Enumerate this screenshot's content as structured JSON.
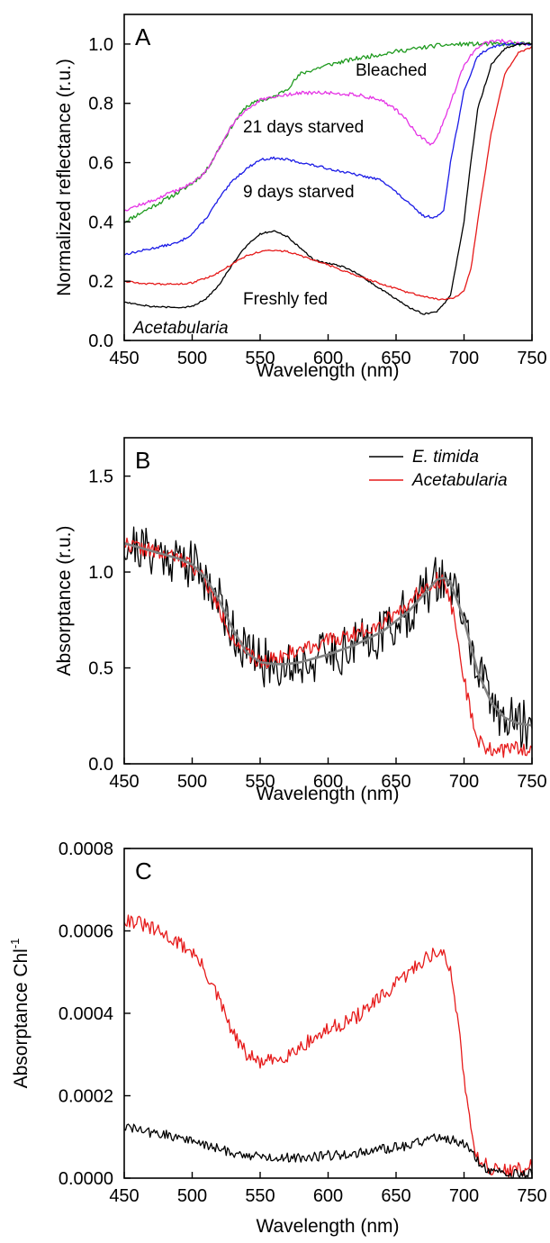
{
  "chart_data": [
    {
      "panel_label": "A",
      "type": "line",
      "xlabel": "Wavelength (nm)",
      "ylabel": "Normalized reflectance (r.u.)",
      "xlim": [
        450,
        750
      ],
      "ylim": [
        0.0,
        1.1
      ],
      "xticks": [
        "450",
        "500",
        "550",
        "600",
        "650",
        "700",
        "750"
      ],
      "yticks": [
        "0.0",
        "0.2",
        "0.4",
        "0.6",
        "0.8",
        "1.0"
      ],
      "grid": false,
      "annotations": [
        {
          "text": "Bleached",
          "color": "#1f9a1f"
        },
        {
          "text": "21 days starved",
          "color": "#e535e5"
        },
        {
          "text": "9 days starved",
          "color": "#1a1ae6"
        },
        {
          "text": "Freshly fed",
          "color": "#e61a1a"
        },
        {
          "text": "Acetabularia",
          "color": "#000000"
        }
      ],
      "series": [
        {
          "color": "#1f9a1f",
          "noise": 0.007,
          "x": [
            450,
            470,
            490,
            500,
            510,
            520,
            530,
            540,
            550,
            560,
            570,
            580,
            600,
            620,
            650,
            680,
            700,
            720,
            750
          ],
          "y": [
            0.4,
            0.45,
            0.5,
            0.53,
            0.57,
            0.65,
            0.73,
            0.79,
            0.81,
            0.82,
            0.85,
            0.9,
            0.93,
            0.95,
            0.975,
            0.995,
            1.0,
            1.0,
            1.0
          ]
        },
        {
          "color": "#e535e5",
          "noise": 0.006,
          "x": [
            450,
            470,
            490,
            500,
            510,
            520,
            530,
            540,
            550,
            560,
            570,
            580,
            600,
            620,
            640,
            655,
            665,
            675,
            680,
            690,
            700,
            710,
            720,
            730,
            740,
            750
          ],
          "y": [
            0.44,
            0.47,
            0.51,
            0.53,
            0.57,
            0.65,
            0.73,
            0.78,
            0.81,
            0.82,
            0.83,
            0.835,
            0.835,
            0.83,
            0.81,
            0.76,
            0.7,
            0.66,
            0.68,
            0.8,
            0.93,
            0.99,
            1.01,
            1.01,
            1.0,
            1.0
          ]
        },
        {
          "color": "#1a1ae6",
          "noise": 0.004,
          "x": [
            450,
            470,
            490,
            500,
            510,
            520,
            530,
            540,
            550,
            560,
            570,
            580,
            600,
            620,
            640,
            650,
            660,
            670,
            680,
            685,
            690,
            700,
            710,
            720,
            730,
            740,
            750
          ],
          "y": [
            0.29,
            0.31,
            0.33,
            0.36,
            0.41,
            0.48,
            0.54,
            0.58,
            0.61,
            0.615,
            0.61,
            0.6,
            0.58,
            0.56,
            0.54,
            0.5,
            0.46,
            0.42,
            0.415,
            0.44,
            0.6,
            0.84,
            0.96,
            0.99,
            1.0,
            1.0,
            1.0
          ]
        },
        {
          "color": "#000000",
          "noise": 0.003,
          "x": [
            450,
            470,
            490,
            500,
            510,
            520,
            530,
            540,
            550,
            560,
            570,
            580,
            590,
            600,
            610,
            620,
            630,
            640,
            650,
            660,
            670,
            680,
            690,
            700,
            705,
            710,
            720,
            730,
            740,
            750
          ],
          "y": [
            0.13,
            0.115,
            0.11,
            0.115,
            0.14,
            0.19,
            0.26,
            0.32,
            0.36,
            0.37,
            0.35,
            0.31,
            0.27,
            0.26,
            0.25,
            0.23,
            0.2,
            0.17,
            0.14,
            0.11,
            0.09,
            0.095,
            0.15,
            0.4,
            0.6,
            0.78,
            0.93,
            0.985,
            1.0,
            1.0
          ]
        },
        {
          "color": "#e61a1a",
          "noise": 0.003,
          "x": [
            450,
            470,
            490,
            500,
            510,
            520,
            530,
            540,
            550,
            560,
            570,
            580,
            590,
            600,
            620,
            640,
            660,
            680,
            690,
            695,
            700,
            705,
            710,
            720,
            730,
            740,
            750
          ],
          "y": [
            0.2,
            0.19,
            0.19,
            0.195,
            0.21,
            0.23,
            0.26,
            0.285,
            0.3,
            0.305,
            0.3,
            0.285,
            0.27,
            0.255,
            0.22,
            0.19,
            0.16,
            0.14,
            0.14,
            0.15,
            0.17,
            0.24,
            0.4,
            0.7,
            0.9,
            0.97,
            0.99
          ]
        }
      ]
    },
    {
      "panel_label": "B",
      "type": "line",
      "xlabel": "Wavelength (nm)",
      "ylabel": "Absorptance (r.u.)",
      "xlim": [
        450,
        750
      ],
      "ylim": [
        0.0,
        1.7
      ],
      "xticks": [
        "450",
        "500",
        "550",
        "600",
        "650",
        "700",
        "750"
      ],
      "yticks": [
        "0.0",
        "0.5",
        "1.0",
        "1.5"
      ],
      "grid": false,
      "legend_position": "top-right",
      "series": [
        {
          "name": "E. timida",
          "color": "#000000",
          "noise": 0.13,
          "x": [
            450,
            470,
            490,
            500,
            510,
            520,
            530,
            540,
            550,
            560,
            570,
            580,
            600,
            620,
            640,
            660,
            670,
            680,
            685,
            690,
            700,
            710,
            720,
            730,
            740,
            750
          ],
          "y": [
            1.15,
            1.11,
            1.07,
            1.04,
            0.97,
            0.85,
            0.7,
            0.58,
            0.53,
            0.52,
            0.52,
            0.53,
            0.57,
            0.62,
            0.69,
            0.8,
            0.88,
            0.96,
            0.97,
            0.95,
            0.75,
            0.48,
            0.32,
            0.24,
            0.21,
            0.2
          ]
        },
        {
          "name": "Acetabularia",
          "color": "#e61a1a",
          "noise": 0.04,
          "x": [
            450,
            470,
            490,
            500,
            510,
            520,
            530,
            540,
            550,
            560,
            570,
            580,
            600,
            620,
            640,
            660,
            670,
            680,
            685,
            690,
            695,
            700,
            705,
            710,
            720,
            730,
            740,
            750
          ],
          "y": [
            1.15,
            1.11,
            1.07,
            1.04,
            0.95,
            0.8,
            0.66,
            0.57,
            0.53,
            0.55,
            0.57,
            0.6,
            0.64,
            0.68,
            0.74,
            0.84,
            0.92,
            0.96,
            0.95,
            0.85,
            0.68,
            0.45,
            0.25,
            0.12,
            0.07,
            0.07,
            0.08,
            0.08
          ]
        },
        {
          "color": "#808080",
          "noise": 0,
          "x": [
            450,
            470,
            490,
            500,
            510,
            520,
            530,
            540,
            550,
            560,
            570,
            580,
            600,
            620,
            640,
            660,
            670,
            680,
            685,
            690,
            700,
            710,
            720,
            730,
            740,
            750
          ],
          "y": [
            1.15,
            1.11,
            1.07,
            1.04,
            0.97,
            0.85,
            0.7,
            0.58,
            0.53,
            0.52,
            0.52,
            0.53,
            0.57,
            0.62,
            0.69,
            0.8,
            0.88,
            0.96,
            0.97,
            0.95,
            0.75,
            0.48,
            0.32,
            0.24,
            0.21,
            0.2
          ]
        }
      ]
    },
    {
      "panel_label": "C",
      "type": "line",
      "xlabel": "Wavelength (nm)",
      "ylabel": "Absorptance Chl",
      "ylabel_superscript": "-1",
      "xlim": [
        450,
        750
      ],
      "ylim": [
        0.0,
        0.0008
      ],
      "xticks": [
        "450",
        "500",
        "550",
        "600",
        "650",
        "700",
        "750"
      ],
      "yticks": [
        "0.0000",
        "0.0002",
        "0.0004",
        "0.0006",
        "0.0008"
      ],
      "grid": false,
      "series": [
        {
          "color": "#e61a1a",
          "noise": 1.8e-05,
          "x": [
            450,
            460,
            470,
            480,
            490,
            500,
            510,
            520,
            530,
            540,
            550,
            560,
            570,
            580,
            600,
            620,
            640,
            660,
            670,
            680,
            685,
            690,
            695,
            700,
            705,
            710,
            720,
            730,
            740,
            750
          ],
          "y": [
            0.00063,
            0.00062,
            0.000605,
            0.00059,
            0.00057,
            0.00055,
            0.0005,
            0.00043,
            0.00035,
            0.0003,
            0.00028,
            0.000285,
            0.0003,
            0.00032,
            0.00036,
            0.00039,
            0.00044,
            0.0005,
            0.00053,
            0.00055,
            0.00054,
            0.0005,
            0.0004,
            0.00025,
            0.00012,
            5e-05,
            2e-05,
            2e-05,
            2e-05,
            3e-05
          ]
        },
        {
          "color": "#000000",
          "noise": 1.2e-05,
          "x": [
            450,
            470,
            490,
            500,
            520,
            540,
            560,
            580,
            600,
            620,
            640,
            660,
            680,
            690,
            700,
            710,
            720,
            730,
            740,
            750
          ],
          "y": [
            0.000125,
            0.00011,
            0.0001,
            9e-05,
            7e-05,
            5.5e-05,
            5e-05,
            5e-05,
            5.5e-05,
            6e-05,
            7e-05,
            8e-05,
            0.0001,
            9.5e-05,
            8.5e-05,
            4e-05,
            1.5e-05,
            1e-05,
            1e-05,
            1e-05
          ]
        }
      ]
    }
  ]
}
